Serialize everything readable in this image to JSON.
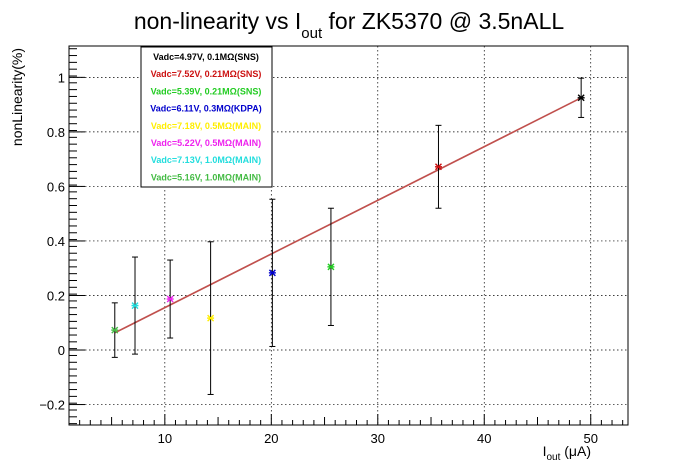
{
  "chart_data": {
    "type": "scatter",
    "title": {
      "main": "non-linearity vs I",
      "subscript": "out",
      "rest": " for ZK5370 @ 3.5nALL"
    },
    "xlabel": {
      "main": "I",
      "subscript": "out",
      "rest": " (μA)"
    },
    "ylabel": "nonLinearity(%)",
    "xlim": [
      1,
      53.5
    ],
    "ylim": [
      -0.275,
      1.115
    ],
    "x_ticks": [
      10,
      20,
      30,
      40,
      50
    ],
    "x_tick_labels": [
      "10",
      "20",
      "30",
      "40",
      "50"
    ],
    "y_ticks": [
      -0.2,
      0,
      0.2,
      0.4,
      0.6,
      0.8,
      1
    ],
    "y_tick_labels": [
      "−0.2",
      "0",
      "0.2",
      "0.4",
      "0.6",
      "0.8",
      "1"
    ],
    "grid": true,
    "legend_position": "top-left",
    "series": [
      {
        "name": "Vadc=4.97V, 0.1MΩ(SNS)",
        "color": "#000000",
        "x": 49.1,
        "y": 0.925,
        "err": 0.072
      },
      {
        "name": "Vadc=7.52V, 0.21MΩ(SNS)",
        "color": "#cc1111",
        "x": 35.7,
        "y": 0.672,
        "err": 0.152
      },
      {
        "name": "Vadc=5.39V, 0.21MΩ(SNS)",
        "color": "#22cc22",
        "x": 25.6,
        "y": 0.305,
        "err": 0.215
      },
      {
        "name": "Vadc=6.11V, 0.3MΩ(KDPA)",
        "color": "#0000cc",
        "x": 20.1,
        "y": 0.283,
        "err": 0.27
      },
      {
        "name": "Vadc=7.18V, 0.5MΩ(MAIN)",
        "color": "#ffee00",
        "x": 14.3,
        "y": 0.117,
        "err": 0.28
      },
      {
        "name": "Vadc=5.22V, 0.5MΩ(MAIN)",
        "color": "#ee22ee",
        "x": 10.5,
        "y": 0.187,
        "err": 0.143
      },
      {
        "name": "Vadc=7.13V, 1.0MΩ(MAIN)",
        "color": "#22dddd",
        "x": 7.2,
        "y": 0.163,
        "err": 0.178
      },
      {
        "name": "Vadc=5.16V, 1.0MΩ(MAIN)",
        "color": "#44bb44",
        "x": 5.3,
        "y": 0.073,
        "err": 0.1
      }
    ],
    "fit": {
      "color": "#c0504d",
      "x": [
        5.3,
        49.1
      ],
      "y": [
        0.063,
        0.925
      ]
    }
  }
}
